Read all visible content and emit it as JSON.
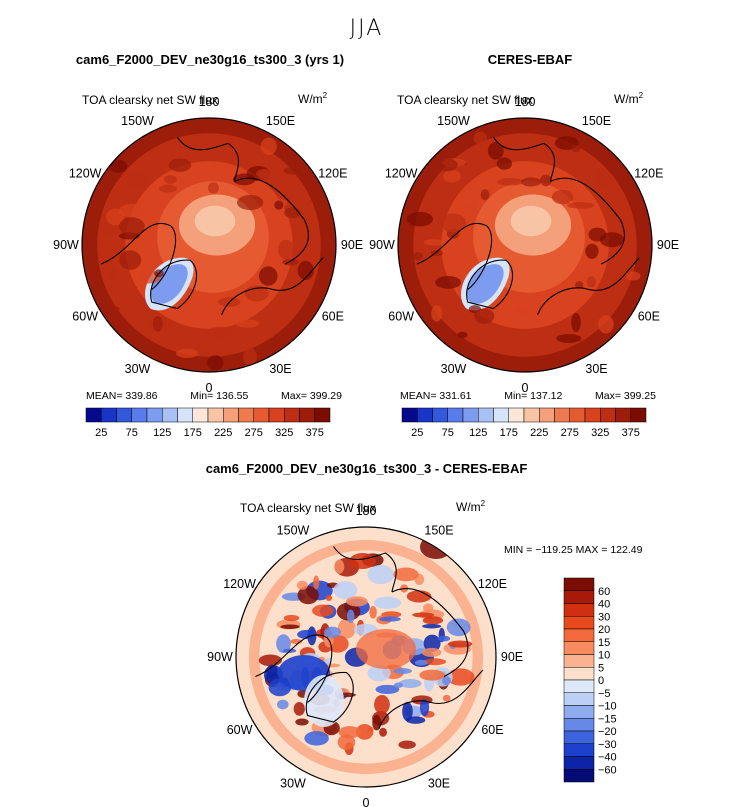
{
  "page": {
    "season": "JJA",
    "diff_title": "cam6_F2000_DEV_ne30g16_ts300_3 - CERES-EBAF"
  },
  "panels": [
    {
      "title": "cam6_F2000_DEV_ne30g16_ts300_3 (yrs 1)",
      "subtitle": "TOA clearsky net SW flux",
      "units": "W/m",
      "units_sup": "2",
      "lon_labels": [
        "180",
        "150E",
        "120E",
        "90E",
        "60E",
        "30E",
        "0",
        "30W",
        "60W",
        "90W",
        "120W",
        "150W"
      ],
      "stats": {
        "mean": "MEAN= 339.86",
        "min": "Min= 136.55",
        "max": "Max= 399.29"
      }
    },
    {
      "title": "CERES-EBAF",
      "subtitle": "TOA clearsky net SW flux",
      "units": "W/m",
      "units_sup": "2",
      "lon_labels": [
        "180",
        "150E",
        "120E",
        "90E",
        "60E",
        "30E",
        "0",
        "30W",
        "60W",
        "90W",
        "120W",
        "150W"
      ],
      "stats": {
        "mean": "MEAN= 331.61",
        "min": "Min= 137.12",
        "max": "Max= 399.25"
      }
    },
    {
      "subtitle": "TOA clearsky net SW flux",
      "units": "W/m",
      "units_sup": "2",
      "lon_labels": [
        "180",
        "150E",
        "120E",
        "90E",
        "60E",
        "30E",
        "0",
        "30W",
        "60W",
        "90W",
        "120W",
        "150W"
      ],
      "minmax": "MIN = −119.25  MAX = 122.49"
    }
  ],
  "chart_data": [
    {
      "type": "heatmap",
      "projection": "north-polar-stereographic",
      "title": "cam6_F2000_DEV_ne30g16_ts300_3 (yrs 1)",
      "variable": "TOA clearsky net SW flux",
      "units": "W/m2",
      "mean": 339.86,
      "min": 136.55,
      "max": 399.29,
      "colorbar_ticks": [
        "25",
        "75",
        "125",
        "175",
        "225",
        "275",
        "325",
        "375"
      ],
      "contour_levels": [
        25,
        50,
        75,
        100,
        125,
        150,
        175,
        200,
        225,
        250,
        275,
        300,
        325,
        350,
        375
      ],
      "colorbar_colors": [
        "#050a8c",
        "#1a34c8",
        "#3458dc",
        "#5a7cea",
        "#7d9cf0",
        "#a8c0f4",
        "#d6e4fa",
        "#fbe6d8",
        "#f8c4a6",
        "#f4a07a",
        "#ee7a52",
        "#e65a32",
        "#d8421e",
        "#bd2e12",
        "#9c1e0a",
        "#7a0c02"
      ]
    },
    {
      "type": "heatmap",
      "projection": "north-polar-stereographic",
      "title": "CERES-EBAF",
      "variable": "TOA clearsky net SW flux",
      "units": "W/m2",
      "mean": 331.61,
      "min": 137.12,
      "max": 399.25,
      "colorbar_ticks": [
        "25",
        "75",
        "125",
        "175",
        "225",
        "275",
        "325",
        "375"
      ],
      "contour_levels": [
        25,
        50,
        75,
        100,
        125,
        150,
        175,
        200,
        225,
        250,
        275,
        300,
        325,
        350,
        375
      ],
      "colorbar_colors": [
        "#050a8c",
        "#1a34c8",
        "#3458dc",
        "#5a7cea",
        "#7d9cf0",
        "#a8c0f4",
        "#d6e4fa",
        "#fbe6d8",
        "#f8c4a6",
        "#f4a07a",
        "#ee7a52",
        "#e65a32",
        "#d8421e",
        "#bd2e12",
        "#9c1e0a",
        "#7a0c02"
      ]
    },
    {
      "type": "heatmap",
      "projection": "north-polar-stereographic",
      "title": "cam6_F2000_DEV_ne30g16_ts300_3 - CERES-EBAF",
      "variable": "TOA clearsky net SW flux",
      "units": "W/m2",
      "min": -119.25,
      "max": 122.49,
      "colorbar_ticks": [
        "60",
        "40",
        "30",
        "20",
        "15",
        "10",
        "5",
        "0",
        "−5",
        "−10",
        "−15",
        "−20",
        "−30",
        "−40",
        "−60"
      ],
      "colorbar_colors": [
        "#7a0c02",
        "#a81a08",
        "#d0300f",
        "#e84a1e",
        "#f26a3c",
        "#f78c60",
        "#fbb290",
        "#fde0cc",
        "#dde8fb",
        "#bcd0f6",
        "#8eacee",
        "#6688e6",
        "#3c62de",
        "#1c40cc",
        "#0c24a8",
        "#020c74"
      ]
    }
  ]
}
